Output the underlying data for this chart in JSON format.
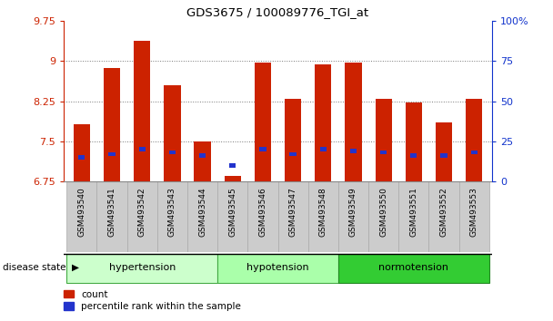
{
  "title": "GDS3675 / 100089776_TGI_at",
  "samples": [
    "GSM493540",
    "GSM493541",
    "GSM493542",
    "GSM493543",
    "GSM493544",
    "GSM493545",
    "GSM493546",
    "GSM493547",
    "GSM493548",
    "GSM493549",
    "GSM493550",
    "GSM493551",
    "GSM493552",
    "GSM493553"
  ],
  "red_values": [
    7.82,
    8.87,
    9.37,
    8.55,
    7.5,
    6.86,
    8.97,
    8.3,
    8.93,
    8.97,
    8.3,
    8.22,
    7.85,
    8.3
  ],
  "blue_percentiles": [
    15,
    17,
    20,
    18,
    16,
    10,
    20,
    17,
    20,
    19,
    18,
    16,
    16,
    18
  ],
  "y_min": 6.75,
  "y_max": 9.75,
  "y_ticks": [
    6.75,
    7.5,
    8.25,
    9.0,
    9.75
  ],
  "y_tick_labels": [
    "6.75",
    "7.5",
    "8.25",
    "9",
    "9.75"
  ],
  "y2_ticks": [
    0,
    25,
    50,
    75,
    100
  ],
  "y2_tick_labels": [
    "0",
    "25",
    "50",
    "75",
    "100%"
  ],
  "groups": [
    {
      "label": "hypertension",
      "start": 0,
      "end": 4,
      "color": "#ccffcc",
      "border": "#44aa44"
    },
    {
      "label": "hypotension",
      "start": 5,
      "end": 8,
      "color": "#aaffaa",
      "border": "#44aa44"
    },
    {
      "label": "normotension",
      "start": 9,
      "end": 13,
      "color": "#33cc33",
      "border": "#228822"
    }
  ],
  "bar_color": "#cc2200",
  "blue_color": "#2233cc",
  "bar_width": 0.55,
  "tick_bg_color": "#cccccc",
  "tick_border_color": "#aaaaaa",
  "grid_color": "#888888",
  "label_color_red": "#cc2200",
  "label_color_blue": "#1133cc",
  "spine_color": "#888888"
}
